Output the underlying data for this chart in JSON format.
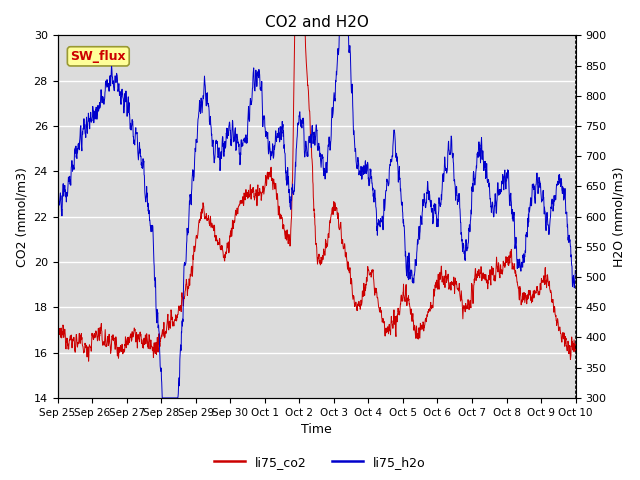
{
  "title": "CO2 and H2O",
  "xlabel": "Time",
  "ylabel_left": "CO2 (mmol/m3)",
  "ylabel_right": "H2O (mmol/m3)",
  "ylim_left": [
    14,
    30
  ],
  "ylim_right": [
    300,
    900
  ],
  "yticks_left": [
    14,
    16,
    18,
    20,
    22,
    24,
    26,
    28,
    30
  ],
  "yticks_right": [
    300,
    350,
    400,
    450,
    500,
    550,
    600,
    650,
    700,
    750,
    800,
    850,
    900
  ],
  "xtick_labels": [
    "Sep 25",
    "Sep 26",
    "Sep 27",
    "Sep 28",
    "Sep 29",
    "Sep 30",
    "Oct 1",
    "Oct 2",
    "Oct 3",
    "Oct 4",
    "Oct 5",
    "Oct 6",
    "Oct 7",
    "Oct 8",
    "Oct 9",
    "Oct 10"
  ],
  "color_co2": "#cc0000",
  "color_h2o": "#0000cc",
  "bg_color": "#dcdcdc",
  "annotation_text": "SW_flux",
  "annotation_color": "#cc0000",
  "annotation_bg": "#ffff99",
  "annotation_border": "#999933"
}
